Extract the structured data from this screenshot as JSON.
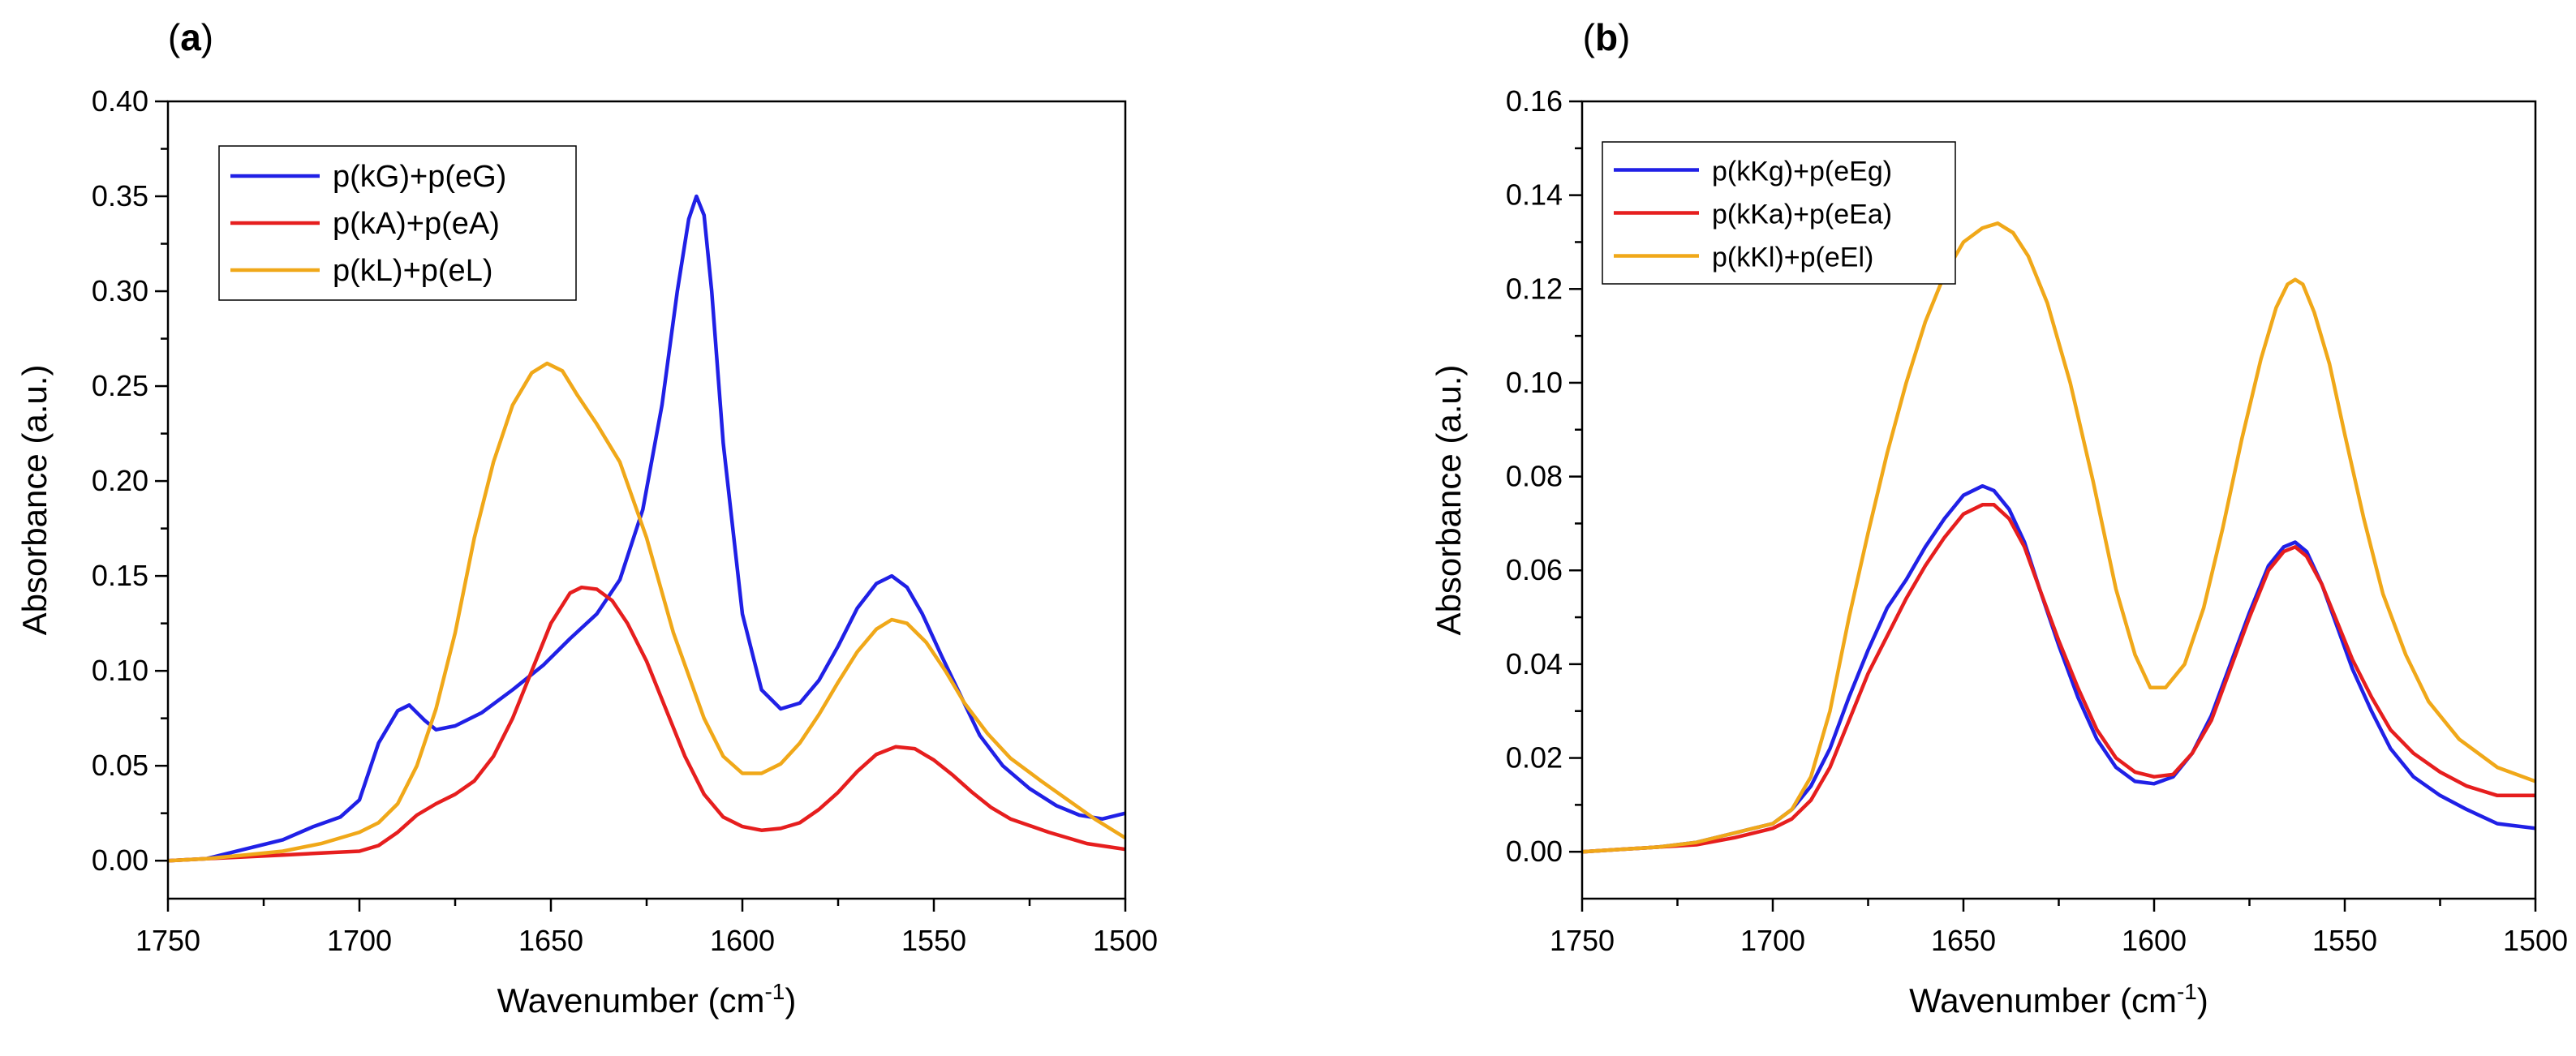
{
  "chart_data": [
    {
      "type": "line",
      "panel_label": "a",
      "xlabel": "Wavenumber (cm",
      "xlabel_sup": "-1",
      "xlabel_close": ")",
      "ylabel": "Absorbance (a.u.)",
      "xlim": [
        1750,
        1500
      ],
      "ylim": [
        -0.02,
        0.4
      ],
      "xticks": [
        1750,
        1700,
        1650,
        1600,
        1550,
        1500
      ],
      "yticks": [
        0.0,
        0.05,
        0.1,
        0.15,
        0.2,
        0.25,
        0.3,
        0.35,
        0.4
      ],
      "xtick_labels": [
        "1750",
        "1700",
        "1650",
        "1600",
        "1550",
        "1500"
      ],
      "ytick_labels": [
        "0.00",
        "0.05",
        "0.10",
        "0.15",
        "0.20",
        "0.25",
        "0.30",
        "0.35",
        "0.40"
      ],
      "legend_position": "top-left",
      "series": [
        {
          "name": "p(kG)+p(eG)",
          "color": "#2020e6",
          "x": [
            1750,
            1740,
            1730,
            1720,
            1712,
            1705,
            1700,
            1695,
            1690,
            1687,
            1683,
            1680,
            1675,
            1668,
            1660,
            1652,
            1645,
            1638,
            1632,
            1626,
            1621,
            1617,
            1614,
            1612,
            1610,
            1608,
            1605,
            1600,
            1595,
            1590,
            1585,
            1580,
            1575,
            1570,
            1565,
            1561,
            1557,
            1553,
            1548,
            1543,
            1538,
            1532,
            1525,
            1518,
            1512,
            1506,
            1500
          ],
          "y": [
            0.0,
            0.001,
            0.006,
            0.011,
            0.018,
            0.023,
            0.032,
            0.062,
            0.079,
            0.082,
            0.074,
            0.069,
            0.071,
            0.078,
            0.09,
            0.103,
            0.117,
            0.13,
            0.148,
            0.185,
            0.24,
            0.3,
            0.338,
            0.35,
            0.34,
            0.3,
            0.22,
            0.13,
            0.09,
            0.08,
            0.083,
            0.095,
            0.113,
            0.133,
            0.146,
            0.15,
            0.144,
            0.13,
            0.108,
            0.087,
            0.066,
            0.05,
            0.038,
            0.029,
            0.024,
            0.022,
            0.025
          ]
        },
        {
          "name": "p(kA)+p(eA)",
          "color": "#e61e1e",
          "x": [
            1750,
            1740,
            1730,
            1720,
            1710,
            1700,
            1695,
            1690,
            1685,
            1680,
            1675,
            1670,
            1665,
            1660,
            1655,
            1650,
            1645,
            1642,
            1638,
            1634,
            1630,
            1625,
            1620,
            1615,
            1610,
            1605,
            1600,
            1595,
            1590,
            1585,
            1580,
            1575,
            1570,
            1565,
            1560,
            1555,
            1550,
            1545,
            1540,
            1535,
            1530,
            1520,
            1510,
            1500
          ],
          "y": [
            0.0,
            0.001,
            0.002,
            0.003,
            0.004,
            0.005,
            0.008,
            0.015,
            0.024,
            0.03,
            0.035,
            0.042,
            0.055,
            0.075,
            0.1,
            0.125,
            0.141,
            0.144,
            0.143,
            0.137,
            0.125,
            0.105,
            0.08,
            0.055,
            0.035,
            0.023,
            0.018,
            0.016,
            0.017,
            0.02,
            0.027,
            0.036,
            0.047,
            0.056,
            0.06,
            0.059,
            0.053,
            0.045,
            0.036,
            0.028,
            0.022,
            0.015,
            0.009,
            0.006
          ]
        },
        {
          "name": "p(kL)+p(eL)",
          "color": "#f0a819",
          "x": [
            1750,
            1740,
            1730,
            1720,
            1710,
            1700,
            1695,
            1690,
            1685,
            1680,
            1675,
            1670,
            1665,
            1660,
            1655,
            1651,
            1647,
            1643,
            1638,
            1632,
            1625,
            1618,
            1610,
            1605,
            1600,
            1595,
            1590,
            1585,
            1580,
            1575,
            1570,
            1565,
            1561,
            1557,
            1552,
            1547,
            1542,
            1536,
            1530,
            1522,
            1515,
            1508,
            1500
          ],
          "y": [
            0.0,
            0.001,
            0.003,
            0.005,
            0.009,
            0.015,
            0.02,
            0.03,
            0.05,
            0.08,
            0.12,
            0.17,
            0.21,
            0.24,
            0.257,
            0.262,
            0.258,
            0.245,
            0.23,
            0.21,
            0.17,
            0.12,
            0.075,
            0.055,
            0.046,
            0.046,
            0.051,
            0.062,
            0.077,
            0.094,
            0.11,
            0.122,
            0.127,
            0.125,
            0.115,
            0.1,
            0.083,
            0.067,
            0.054,
            0.042,
            0.032,
            0.022,
            0.012
          ]
        }
      ]
    },
    {
      "type": "line",
      "panel_label": "b",
      "xlabel": "Wavenumber (cm",
      "xlabel_sup": "-1",
      "xlabel_close": ")",
      "ylabel": "Absorbance (a.u.)",
      "xlim": [
        1750,
        1500
      ],
      "ylim": [
        -0.01,
        0.16
      ],
      "xticks": [
        1750,
        1700,
        1650,
        1600,
        1550,
        1500
      ],
      "yticks": [
        0.0,
        0.02,
        0.04,
        0.06,
        0.08,
        0.1,
        0.12,
        0.14,
        0.16
      ],
      "xtick_labels": [
        "1750",
        "1700",
        "1650",
        "1600",
        "1550",
        "1500"
      ],
      "ytick_labels": [
        "0.00",
        "0.02",
        "0.04",
        "0.06",
        "0.08",
        "0.10",
        "0.12",
        "0.14",
        "0.16"
      ],
      "legend_position": "top-left",
      "series": [
        {
          "name": "p(kKg)+p(eEg)",
          "color": "#2020e6",
          "x": [
            1750,
            1740,
            1730,
            1720,
            1710,
            1700,
            1695,
            1690,
            1685,
            1680,
            1675,
            1670,
            1665,
            1660,
            1655,
            1650,
            1645,
            1642,
            1638,
            1634,
            1630,
            1625,
            1620,
            1615,
            1610,
            1605,
            1600,
            1595,
            1590,
            1585,
            1580,
            1575,
            1570,
            1566,
            1563,
            1560,
            1556,
            1552,
            1548,
            1543,
            1538,
            1532,
            1525,
            1518,
            1510,
            1500
          ],
          "y": [
            0.0,
            0.0005,
            0.001,
            0.002,
            0.004,
            0.006,
            0.009,
            0.014,
            0.022,
            0.033,
            0.043,
            0.052,
            0.058,
            0.065,
            0.071,
            0.076,
            0.078,
            0.077,
            0.073,
            0.066,
            0.056,
            0.044,
            0.033,
            0.024,
            0.018,
            0.015,
            0.0145,
            0.016,
            0.021,
            0.029,
            0.04,
            0.051,
            0.061,
            0.065,
            0.066,
            0.064,
            0.057,
            0.048,
            0.039,
            0.03,
            0.022,
            0.016,
            0.012,
            0.009,
            0.006,
            0.005
          ]
        },
        {
          "name": "p(kKa)+p(eEa)",
          "color": "#e61e1e",
          "x": [
            1750,
            1740,
            1730,
            1720,
            1710,
            1700,
            1695,
            1690,
            1685,
            1680,
            1675,
            1670,
            1665,
            1660,
            1655,
            1650,
            1645,
            1642,
            1638,
            1634,
            1630,
            1625,
            1620,
            1615,
            1610,
            1605,
            1600,
            1595,
            1590,
            1585,
            1580,
            1575,
            1570,
            1566,
            1563,
            1560,
            1556,
            1552,
            1548,
            1543,
            1538,
            1532,
            1525,
            1518,
            1510,
            1500
          ],
          "y": [
            0.0,
            0.0005,
            0.001,
            0.0015,
            0.003,
            0.005,
            0.007,
            0.011,
            0.018,
            0.028,
            0.038,
            0.046,
            0.054,
            0.061,
            0.067,
            0.072,
            0.074,
            0.074,
            0.071,
            0.065,
            0.056,
            0.045,
            0.035,
            0.026,
            0.02,
            0.017,
            0.016,
            0.0165,
            0.021,
            0.028,
            0.039,
            0.05,
            0.06,
            0.064,
            0.065,
            0.063,
            0.057,
            0.049,
            0.041,
            0.033,
            0.026,
            0.021,
            0.017,
            0.014,
            0.012,
            0.012
          ]
        },
        {
          "name": "p(kKl)+p(eEl)",
          "color": "#f0a819",
          "x": [
            1750,
            1740,
            1730,
            1720,
            1710,
            1700,
            1695,
            1690,
            1685,
            1680,
            1675,
            1670,
            1665,
            1660,
            1655,
            1650,
            1645,
            1641,
            1637,
            1633,
            1628,
            1622,
            1616,
            1610,
            1605,
            1601,
            1597,
            1592,
            1587,
            1582,
            1577,
            1572,
            1568,
            1565,
            1563,
            1561,
            1558,
            1554,
            1550,
            1545,
            1540,
            1534,
            1528,
            1520,
            1510,
            1500
          ],
          "y": [
            0.0,
            0.0005,
            0.001,
            0.002,
            0.004,
            0.006,
            0.009,
            0.016,
            0.03,
            0.05,
            0.068,
            0.085,
            0.1,
            0.113,
            0.123,
            0.13,
            0.133,
            0.134,
            0.132,
            0.127,
            0.117,
            0.1,
            0.079,
            0.056,
            0.042,
            0.035,
            0.035,
            0.04,
            0.052,
            0.069,
            0.088,
            0.105,
            0.116,
            0.121,
            0.122,
            0.121,
            0.115,
            0.104,
            0.089,
            0.071,
            0.055,
            0.042,
            0.032,
            0.024,
            0.018,
            0.015
          ]
        }
      ]
    }
  ]
}
